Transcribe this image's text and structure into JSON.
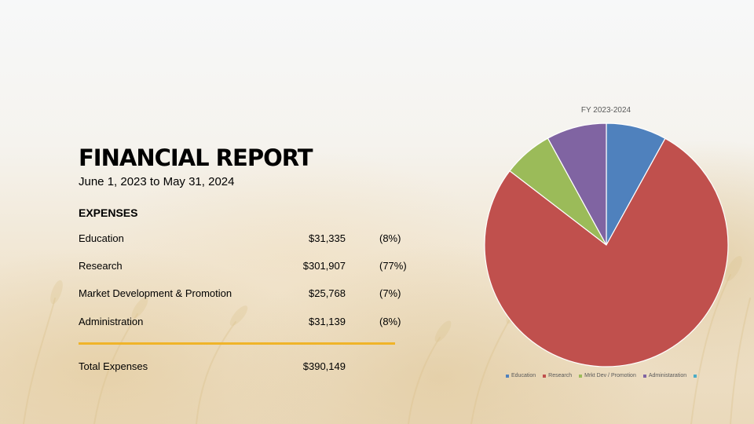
{
  "report": {
    "title": "FINANCIAL REPORT",
    "date_range": "June 1, 2023 to May 31, 2024",
    "section_heading": "EXPENSES",
    "rows": [
      {
        "label": "Education",
        "amount": "$31,335",
        "percent": "(8%)"
      },
      {
        "label": "Research",
        "amount": "$301,907",
        "percent": "(77%)"
      },
      {
        "label": "Market Development & Promotion",
        "amount": "$25,768",
        "percent": "(7%)"
      },
      {
        "label": "Administration",
        "amount": "$31,139",
        "percent": "(8%)"
      }
    ],
    "total": {
      "label": "Total Expenses",
      "amount": "$390,149"
    },
    "rule_color": "#f0b429"
  },
  "chart_data": {
    "type": "pie",
    "title": "FY 2023-2024",
    "categories": [
      "Education",
      "Research",
      "Mrkt Dev / Promotion",
      "Administaration",
      ""
    ],
    "values": [
      31335,
      301907,
      25768,
      31139,
      0
    ],
    "colors": [
      "#4f81bd",
      "#c0504d",
      "#9bbb59",
      "#8064a2",
      "#4bacc6"
    ],
    "legend_position": "bottom",
    "start_angle_deg": 0,
    "direction": "clockwise"
  }
}
